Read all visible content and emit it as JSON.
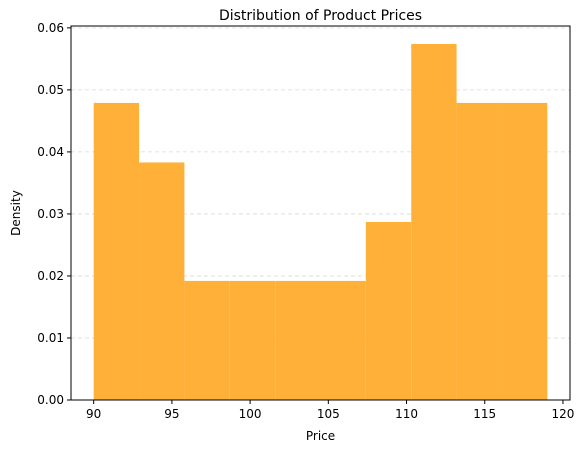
{
  "chart_data": {
    "type": "histogram",
    "title": "Distribution of Product Prices",
    "xlabel": "Price",
    "ylabel": "Density",
    "bar_color": "#ffb038",
    "grid": {
      "y": true,
      "style": "dashed",
      "color": "#d9d9d9"
    },
    "xlim": [
      88.55,
      120.45
    ],
    "ylim": [
      0,
      0.0603
    ],
    "xticks": [
      90,
      95,
      100,
      105,
      110,
      115,
      120
    ],
    "xtick_labels": [
      "90",
      "95",
      "100",
      "105",
      "110",
      "115",
      "120"
    ],
    "yticks": [
      0.0,
      0.01,
      0.02,
      0.03,
      0.04,
      0.05,
      0.06
    ],
    "ytick_labels": [
      "0.00",
      "0.01",
      "0.02",
      "0.03",
      "0.04",
      "0.05",
      "0.06"
    ],
    "bins": [
      {
        "start": 90.0,
        "end": 92.9,
        "density": 0.0479
      },
      {
        "start": 92.9,
        "end": 95.8,
        "density": 0.0383
      },
      {
        "start": 95.8,
        "end": 98.7,
        "density": 0.0192
      },
      {
        "start": 98.7,
        "end": 101.6,
        "density": 0.0192
      },
      {
        "start": 101.6,
        "end": 104.5,
        "density": 0.0192
      },
      {
        "start": 104.5,
        "end": 107.4,
        "density": 0.0192
      },
      {
        "start": 107.4,
        "end": 110.3,
        "density": 0.0287
      },
      {
        "start": 110.3,
        "end": 113.2,
        "density": 0.0574
      },
      {
        "start": 113.2,
        "end": 116.1,
        "density": 0.0479
      },
      {
        "start": 116.1,
        "end": 119.0,
        "density": 0.0479
      }
    ]
  }
}
